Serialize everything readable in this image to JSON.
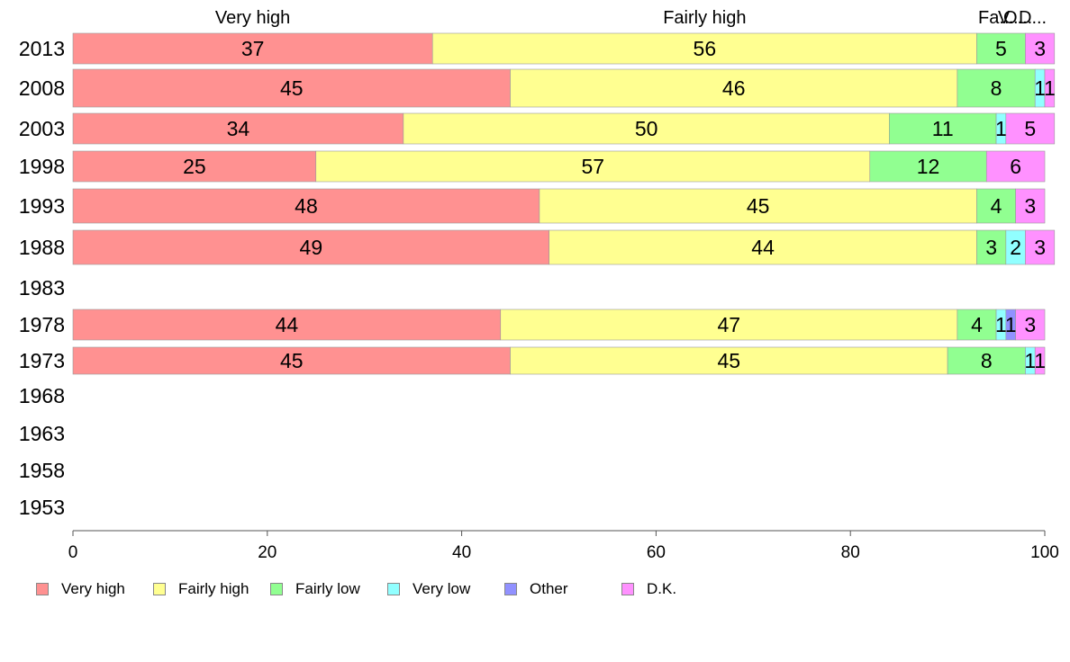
{
  "chart_data": {
    "type": "bar",
    "orientation": "horizontal",
    "stacked": true,
    "categories": [
      "2013",
      "2008",
      "2003",
      "1998",
      "1993",
      "1988",
      "1983",
      "1978",
      "1973",
      "1968",
      "1963",
      "1958",
      "1953"
    ],
    "series": [
      {
        "name": "Very high",
        "color": "#ff9191",
        "values": [
          37,
          45,
          34,
          25,
          48,
          49,
          null,
          44,
          45,
          null,
          null,
          null,
          null
        ]
      },
      {
        "name": "Fairly high",
        "color": "#ffff91",
        "values": [
          56,
          46,
          50,
          57,
          45,
          44,
          null,
          47,
          45,
          null,
          null,
          null,
          null
        ]
      },
      {
        "name": "Fairly low",
        "color": "#91ff91",
        "values": [
          5,
          8,
          11,
          12,
          4,
          3,
          null,
          4,
          8,
          null,
          null,
          null,
          null
        ]
      },
      {
        "name": "Very low",
        "color": "#91ffff",
        "values": [
          0,
          1,
          1,
          0,
          0,
          2,
          null,
          1,
          1,
          null,
          null,
          null,
          null
        ]
      },
      {
        "name": "Other",
        "color": "#9191ff",
        "values": [
          0,
          0,
          0,
          0,
          0,
          0,
          null,
          1,
          0,
          null,
          null,
          null,
          null
        ]
      },
      {
        "name": "D.K.",
        "color": "#ff91ff",
        "values": [
          3,
          1,
          5,
          6,
          3,
          3,
          null,
          3,
          1,
          null,
          null,
          null,
          null
        ]
      }
    ],
    "top_labels": [
      "Very high",
      "Fairly high",
      "Fa...",
      "V...",
      "O...",
      "D..."
    ],
    "xlim": [
      0,
      100
    ],
    "xticks": [
      "0",
      "20",
      "40",
      "60",
      "80",
      "100"
    ],
    "xlabel": "",
    "ylabel": "",
    "title": "",
    "grid": false,
    "legend_position": "bottom"
  }
}
